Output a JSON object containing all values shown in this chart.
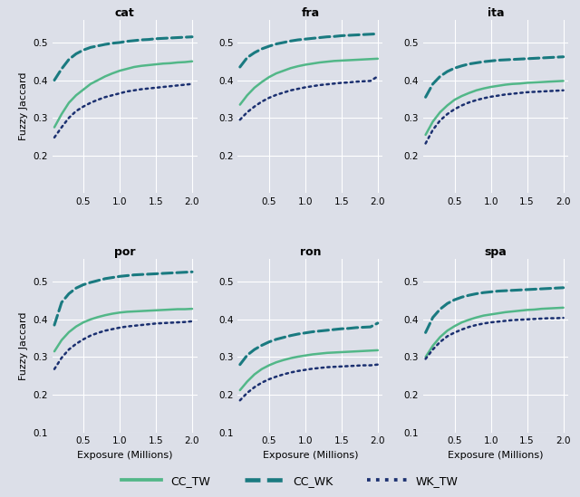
{
  "languages": [
    "cat",
    "fra",
    "ita",
    "por",
    "ron",
    "spa"
  ],
  "x_vals": [
    0.1,
    0.2,
    0.3,
    0.4,
    0.5,
    0.6,
    0.7,
    0.8,
    0.9,
    1.0,
    1.1,
    1.2,
    1.3,
    1.4,
    1.5,
    1.6,
    1.7,
    1.8,
    1.9,
    2.0
  ],
  "series": {
    "cat": {
      "CC_TW": [
        0.275,
        0.31,
        0.34,
        0.36,
        0.375,
        0.39,
        0.4,
        0.41,
        0.418,
        0.425,
        0.43,
        0.435,
        0.438,
        0.44,
        0.442,
        0.444,
        0.445,
        0.447,
        0.448,
        0.45
      ],
      "CC_WK": [
        0.4,
        0.43,
        0.455,
        0.47,
        0.48,
        0.487,
        0.491,
        0.495,
        0.498,
        0.5,
        0.503,
        0.505,
        0.507,
        0.508,
        0.51,
        0.511,
        0.512,
        0.513,
        0.514,
        0.515
      ],
      "WK_TW": [
        0.248,
        0.275,
        0.3,
        0.318,
        0.33,
        0.34,
        0.348,
        0.355,
        0.36,
        0.365,
        0.37,
        0.373,
        0.376,
        0.378,
        0.38,
        0.382,
        0.384,
        0.386,
        0.388,
        0.39
      ]
    },
    "fra": {
      "CC_TW": [
        0.335,
        0.36,
        0.38,
        0.395,
        0.408,
        0.418,
        0.425,
        0.432,
        0.437,
        0.441,
        0.444,
        0.447,
        0.449,
        0.451,
        0.452,
        0.453,
        0.454,
        0.455,
        0.456,
        0.457
      ],
      "CC_WK": [
        0.435,
        0.46,
        0.473,
        0.483,
        0.49,
        0.496,
        0.5,
        0.504,
        0.507,
        0.509,
        0.511,
        0.513,
        0.515,
        0.516,
        0.518,
        0.519,
        0.52,
        0.521,
        0.522,
        0.523
      ],
      "WK_TW": [
        0.295,
        0.315,
        0.33,
        0.343,
        0.353,
        0.361,
        0.367,
        0.373,
        0.377,
        0.381,
        0.384,
        0.387,
        0.389,
        0.391,
        0.393,
        0.394,
        0.396,
        0.397,
        0.398,
        0.41
      ]
    },
    "ita": {
      "CC_TW": [
        0.255,
        0.29,
        0.315,
        0.333,
        0.348,
        0.358,
        0.366,
        0.373,
        0.378,
        0.382,
        0.385,
        0.388,
        0.39,
        0.391,
        0.393,
        0.394,
        0.395,
        0.396,
        0.397,
        0.398
      ],
      "CC_WK": [
        0.355,
        0.39,
        0.41,
        0.423,
        0.432,
        0.438,
        0.443,
        0.446,
        0.449,
        0.451,
        0.453,
        0.454,
        0.455,
        0.456,
        0.457,
        0.458,
        0.459,
        0.46,
        0.461,
        0.462
      ],
      "WK_TW": [
        0.232,
        0.268,
        0.293,
        0.31,
        0.323,
        0.333,
        0.341,
        0.347,
        0.352,
        0.356,
        0.359,
        0.362,
        0.364,
        0.366,
        0.368,
        0.369,
        0.37,
        0.371,
        0.372,
        0.373
      ]
    },
    "por": {
      "CC_TW": [
        0.315,
        0.345,
        0.366,
        0.381,
        0.392,
        0.4,
        0.406,
        0.411,
        0.415,
        0.418,
        0.42,
        0.421,
        0.422,
        0.423,
        0.424,
        0.425,
        0.426,
        0.427,
        0.427,
        0.428
      ],
      "CC_WK": [
        0.385,
        0.445,
        0.468,
        0.483,
        0.492,
        0.498,
        0.503,
        0.508,
        0.511,
        0.514,
        0.516,
        0.518,
        0.519,
        0.52,
        0.521,
        0.522,
        0.523,
        0.524,
        0.525,
        0.526
      ],
      "WK_TW": [
        0.268,
        0.298,
        0.32,
        0.335,
        0.347,
        0.357,
        0.364,
        0.37,
        0.374,
        0.378,
        0.381,
        0.383,
        0.385,
        0.387,
        0.389,
        0.39,
        0.391,
        0.392,
        0.393,
        0.395
      ]
    },
    "ron": {
      "CC_TW": [
        0.212,
        0.235,
        0.254,
        0.268,
        0.278,
        0.286,
        0.292,
        0.297,
        0.301,
        0.304,
        0.307,
        0.309,
        0.311,
        0.312,
        0.313,
        0.314,
        0.315,
        0.316,
        0.317,
        0.318
      ],
      "CC_WK": [
        0.28,
        0.305,
        0.32,
        0.331,
        0.34,
        0.347,
        0.352,
        0.357,
        0.361,
        0.364,
        0.367,
        0.369,
        0.371,
        0.373,
        0.375,
        0.376,
        0.378,
        0.379,
        0.38,
        0.39
      ],
      "WK_TW": [
        0.185,
        0.205,
        0.22,
        0.232,
        0.241,
        0.248,
        0.254,
        0.259,
        0.263,
        0.266,
        0.269,
        0.271,
        0.273,
        0.274,
        0.275,
        0.276,
        0.277,
        0.278,
        0.278,
        0.28
      ]
    },
    "spa": {
      "CC_TW": [
        0.3,
        0.33,
        0.353,
        0.37,
        0.382,
        0.392,
        0.399,
        0.405,
        0.41,
        0.413,
        0.416,
        0.419,
        0.421,
        0.423,
        0.425,
        0.426,
        0.428,
        0.429,
        0.43,
        0.431
      ],
      "CC_WK": [
        0.365,
        0.405,
        0.427,
        0.442,
        0.452,
        0.459,
        0.464,
        0.468,
        0.471,
        0.473,
        0.475,
        0.476,
        0.477,
        0.478,
        0.479,
        0.48,
        0.481,
        0.482,
        0.483,
        0.484
      ],
      "WK_TW": [
        0.295,
        0.32,
        0.34,
        0.355,
        0.365,
        0.373,
        0.38,
        0.385,
        0.389,
        0.392,
        0.394,
        0.396,
        0.398,
        0.399,
        0.4,
        0.401,
        0.402,
        0.403,
        0.403,
        0.404
      ]
    }
  },
  "colors": {
    "CC_TW": "#52B788",
    "CC_WK": "#1A7A80",
    "WK_TW": "#1B3070"
  },
  "linestyles": {
    "CC_TW": "solid",
    "CC_WK": "dashed",
    "WK_TW": "dotted"
  },
  "linewidths": {
    "CC_TW": 1.8,
    "CC_WK": 2.2,
    "WK_TW": 1.8
  },
  "ylim": [
    0.1,
    0.56
  ],
  "yticks_top": [
    0.2,
    0.3,
    0.4,
    0.5
  ],
  "yticks_bottom": [
    0.1,
    0.2,
    0.3,
    0.4,
    0.5
  ],
  "xticks": [
    0.5,
    1.0,
    1.5,
    2.0
  ],
  "xlabel": "Exposure (Millions)",
  "ylabel": "Fuzzy Jaccard",
  "bg_color": "#DCDFE8",
  "fig_bg": "#DCDFE8",
  "grid_color": "#FFFFFF",
  "title_fontsize": 9,
  "label_fontsize": 8,
  "tick_fontsize": 7.5,
  "legend_fontsize": 9
}
